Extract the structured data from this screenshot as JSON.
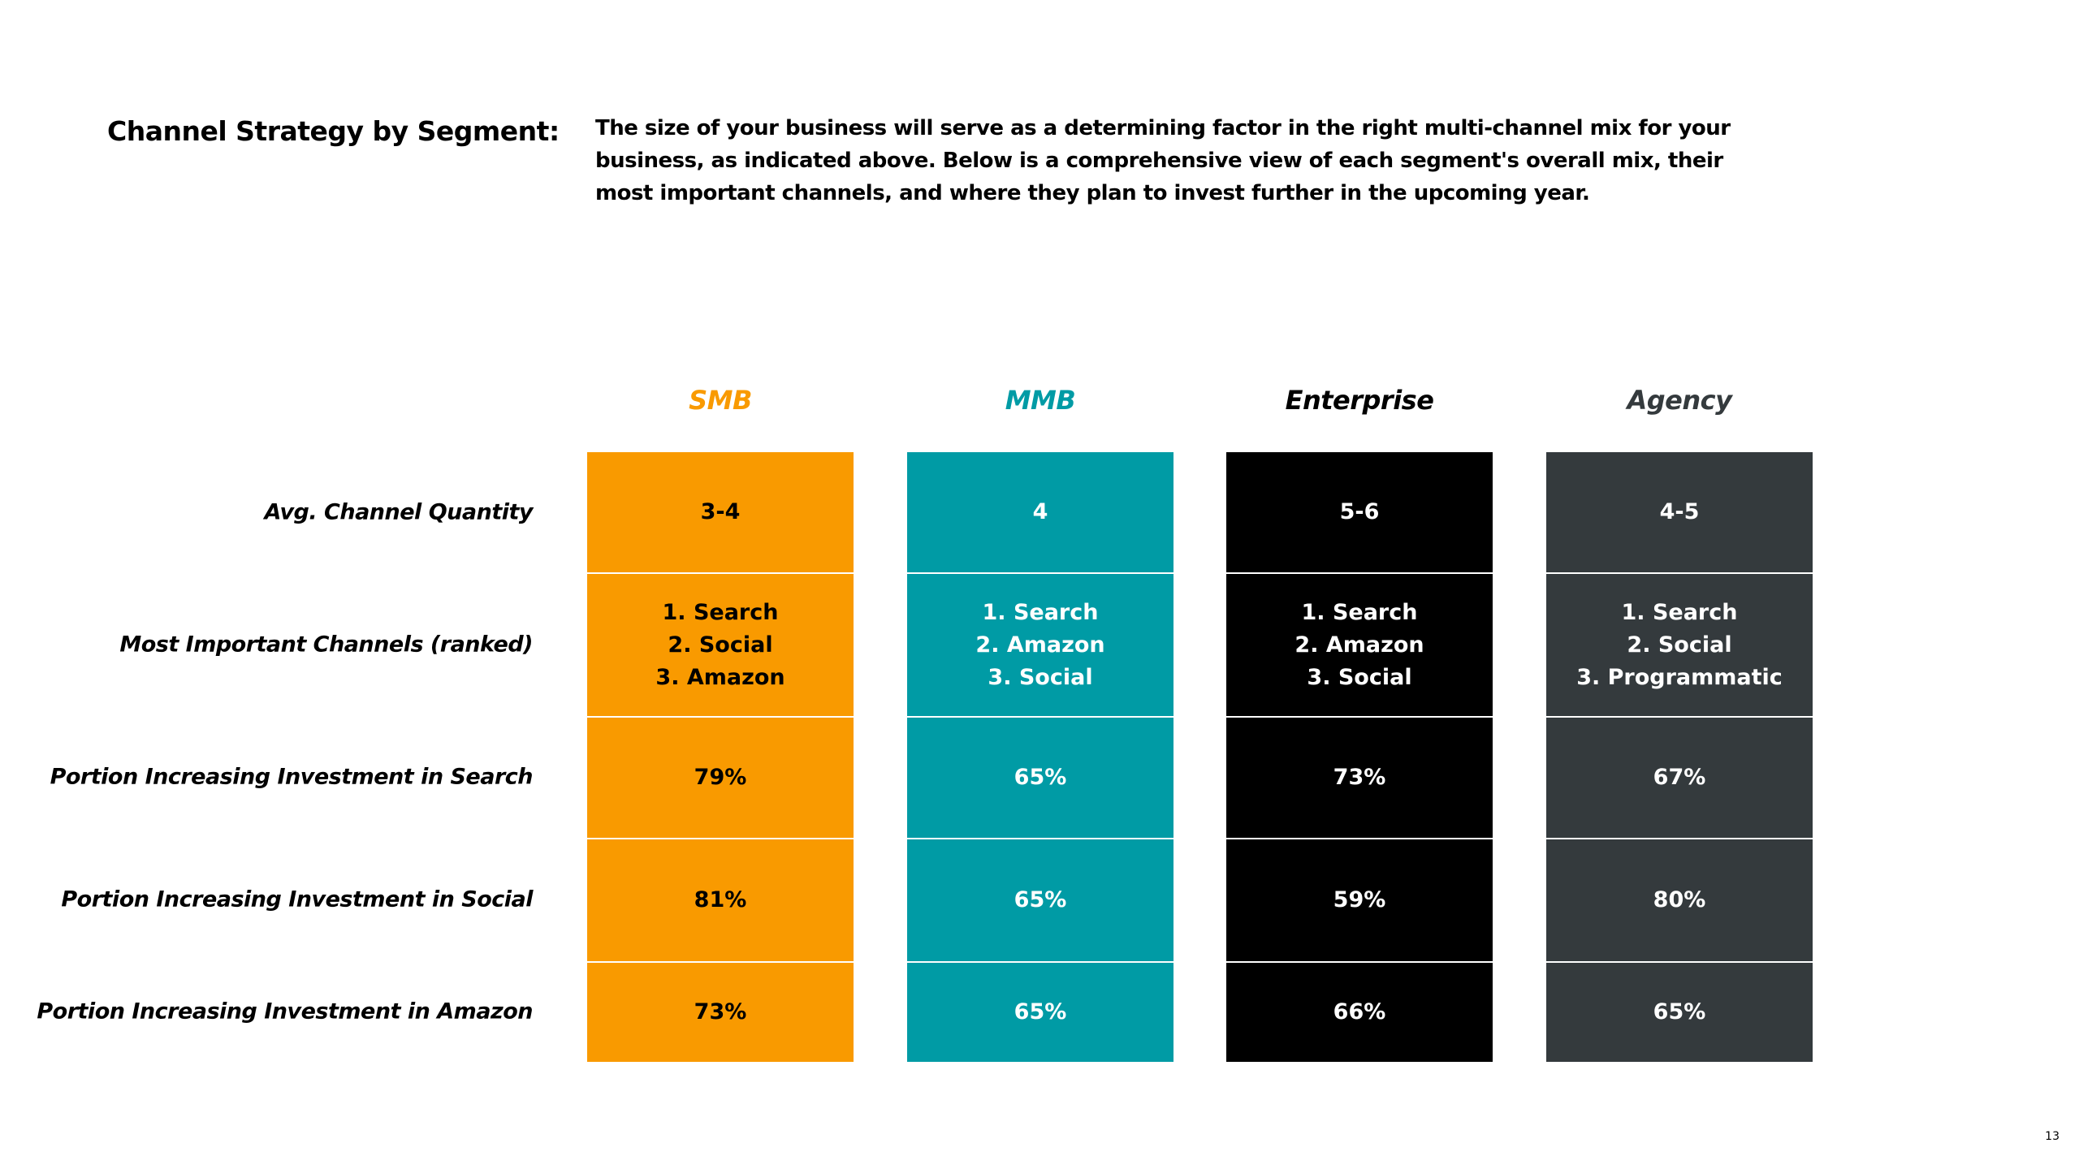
{
  "header": {
    "title": "Channel Strategy by Segment:",
    "description": [
      "The size of your business will serve as a determining factor in the right multi-channel mix for your",
      "business, as indicated above. Below is a comprehensive view of each segment's overall mix, their",
      "most important channels, and where they plan to invest further in the upcoming year."
    ]
  },
  "table": {
    "row_labels": [
      "Avg. Channel Quantity",
      "Most Important Channels (ranked)",
      "Portion Increasing Investment in Search",
      "Portion Increasing Investment in Social",
      "Portion Increasing Investment in Amazon"
    ],
    "columns": [
      {
        "header": "SMB",
        "cells": [
          "3-4",
          [
            "1. Search",
            "2. Social",
            "3. Amazon"
          ],
          "79%",
          "81%",
          "73%"
        ]
      },
      {
        "header": "MMB",
        "cells": [
          "4",
          [
            "1. Search",
            "2. Amazon",
            "3. Social"
          ],
          "65%",
          "65%",
          "65%"
        ]
      },
      {
        "header": "Enterprise",
        "cells": [
          "5-6",
          [
            "1. Search",
            "2. Amazon",
            "3. Social"
          ],
          "73%",
          "59%",
          "66%"
        ]
      },
      {
        "header": "Agency",
        "cells": [
          "4-5",
          [
            "1. Search",
            "2. Social",
            "3. Programmatic"
          ],
          "67%",
          "80%",
          "65%"
        ]
      }
    ]
  },
  "page_number": "13"
}
